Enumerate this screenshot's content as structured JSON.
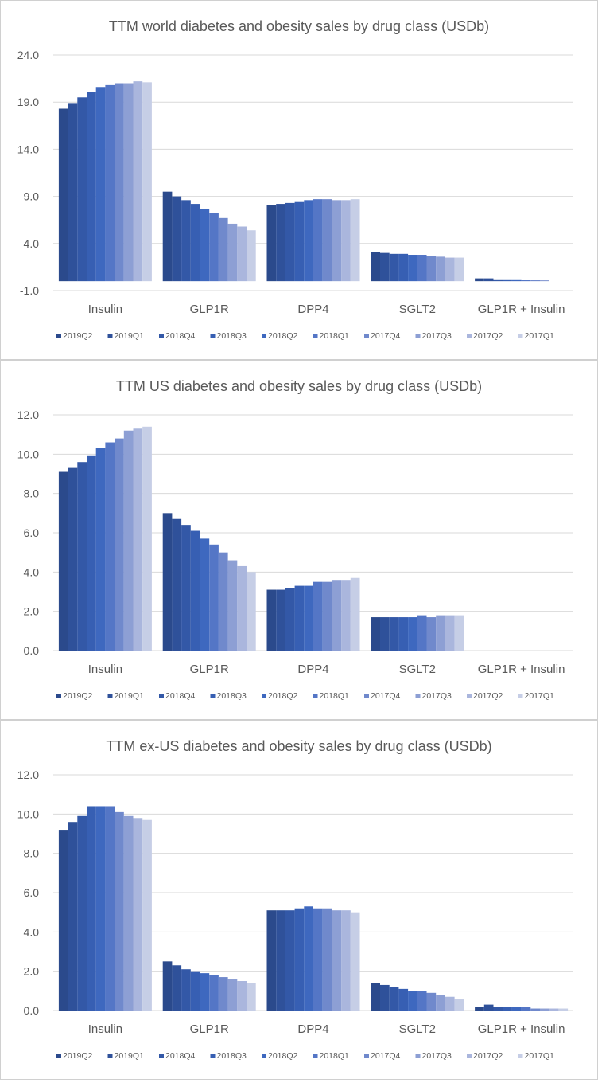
{
  "charts_meta": {
    "legend_colors": [
      "#2b4a8c",
      "#2f519a",
      "#3358a7",
      "#375fb3",
      "#3e68bf",
      "#5476c6",
      "#7089cc",
      "#8d9fd4",
      "#aab6dd",
      "#c6cee6"
    ]
  },
  "chart_data": [
    {
      "type": "bar",
      "title": "TTM world diabetes and obesity sales by drug class (USDb)",
      "xlabel": "",
      "ylabel": "",
      "ylim": [
        -1.0,
        24.0
      ],
      "yticks": [
        "24.0",
        "19.0",
        "14.0",
        "9.0",
        "4.0",
        "-1.0"
      ],
      "yticks_values": [
        24,
        19,
        14,
        9,
        4,
        -1
      ],
      "grid": true,
      "legend_position": "bottom",
      "categories": [
        "Insulin",
        "GLP1R",
        "DPP4",
        "SGLT2",
        "GLP1R + Insulin"
      ],
      "series": [
        {
          "name": "2019Q2",
          "values": [
            18.3,
            9.5,
            8.1,
            3.1,
            0.3
          ]
        },
        {
          "name": "2019Q1",
          "values": [
            18.9,
            9.0,
            8.2,
            3.0,
            0.3
          ]
        },
        {
          "name": "2018Q4",
          "values": [
            19.5,
            8.6,
            8.3,
            2.9,
            0.2
          ]
        },
        {
          "name": "2018Q3",
          "values": [
            20.1,
            8.2,
            8.4,
            2.9,
            0.2
          ]
        },
        {
          "name": "2018Q2",
          "values": [
            20.6,
            7.7,
            8.6,
            2.8,
            0.2
          ]
        },
        {
          "name": "2018Q1",
          "values": [
            20.8,
            7.2,
            8.7,
            2.8,
            0.1
          ]
        },
        {
          "name": "2017Q4",
          "values": [
            21.0,
            6.7,
            8.7,
            2.7,
            0.1
          ]
        },
        {
          "name": "2017Q3",
          "values": [
            21.0,
            6.1,
            8.6,
            2.6,
            0.1
          ]
        },
        {
          "name": "2017Q2",
          "values": [
            21.2,
            5.8,
            8.6,
            2.5,
            0.0
          ]
        },
        {
          "name": "2017Q1",
          "values": [
            21.1,
            5.4,
            8.7,
            2.5,
            0.0
          ]
        }
      ]
    },
    {
      "type": "bar",
      "title": "TTM US diabetes and obesity sales by drug class (USDb)",
      "xlabel": "",
      "ylabel": "",
      "ylim": [
        0.0,
        12.0
      ],
      "yticks": [
        "12.0",
        "10.0",
        "8.0",
        "6.0",
        "4.0",
        "2.0",
        "0.0"
      ],
      "yticks_values": [
        12,
        10,
        8,
        6,
        4,
        2,
        0
      ],
      "grid": true,
      "legend_position": "bottom",
      "categories": [
        "Insulin",
        "GLP1R",
        "DPP4",
        "SGLT2",
        "GLP1R + Insulin"
      ],
      "series": [
        {
          "name": "2019Q2",
          "values": [
            9.1,
            7.0,
            3.1,
            1.7,
            0.0
          ]
        },
        {
          "name": "2019Q1",
          "values": [
            9.3,
            6.7,
            3.1,
            1.7,
            0.0
          ]
        },
        {
          "name": "2018Q4",
          "values": [
            9.6,
            6.4,
            3.2,
            1.7,
            0.0
          ]
        },
        {
          "name": "2018Q3",
          "values": [
            9.9,
            6.1,
            3.3,
            1.7,
            0.0
          ]
        },
        {
          "name": "2018Q2",
          "values": [
            10.3,
            5.7,
            3.3,
            1.7,
            0.0
          ]
        },
        {
          "name": "2018Q1",
          "values": [
            10.6,
            5.4,
            3.5,
            1.8,
            0.0
          ]
        },
        {
          "name": "2017Q4",
          "values": [
            10.8,
            5.0,
            3.5,
            1.7,
            0.0
          ]
        },
        {
          "name": "2017Q3",
          "values": [
            11.2,
            4.6,
            3.6,
            1.8,
            0.0
          ]
        },
        {
          "name": "2017Q2",
          "values": [
            11.3,
            4.3,
            3.6,
            1.8,
            0.0
          ]
        },
        {
          "name": "2017Q1",
          "values": [
            11.4,
            4.0,
            3.7,
            1.8,
            0.0
          ]
        }
      ]
    },
    {
      "type": "bar",
      "title": "TTM ex-US diabetes and obesity sales by drug class (USDb)",
      "xlabel": "",
      "ylabel": "",
      "ylim": [
        0.0,
        12.0
      ],
      "yticks": [
        "12.0",
        "10.0",
        "8.0",
        "6.0",
        "4.0",
        "2.0",
        "0.0"
      ],
      "yticks_values": [
        12,
        10,
        8,
        6,
        4,
        2,
        0
      ],
      "grid": true,
      "legend_position": "bottom",
      "categories": [
        "Insulin",
        "GLP1R",
        "DPP4",
        "SGLT2",
        "GLP1R + Insulin"
      ],
      "series": [
        {
          "name": "2019Q2",
          "values": [
            9.2,
            2.5,
            5.1,
            1.4,
            0.2
          ]
        },
        {
          "name": "2019Q1",
          "values": [
            9.6,
            2.3,
            5.1,
            1.3,
            0.3
          ]
        },
        {
          "name": "2018Q4",
          "values": [
            9.9,
            2.1,
            5.1,
            1.2,
            0.2
          ]
        },
        {
          "name": "2018Q3",
          "values": [
            10.4,
            2.0,
            5.2,
            1.1,
            0.2
          ]
        },
        {
          "name": "2018Q2",
          "values": [
            10.4,
            1.9,
            5.3,
            1.0,
            0.2
          ]
        },
        {
          "name": "2018Q1",
          "values": [
            10.4,
            1.8,
            5.2,
            1.0,
            0.2
          ]
        },
        {
          "name": "2017Q4",
          "values": [
            10.1,
            1.7,
            5.2,
            0.9,
            0.1
          ]
        },
        {
          "name": "2017Q3",
          "values": [
            9.9,
            1.6,
            5.1,
            0.8,
            0.1
          ]
        },
        {
          "name": "2017Q2",
          "values": [
            9.8,
            1.5,
            5.1,
            0.7,
            0.1
          ]
        },
        {
          "name": "2017Q1",
          "values": [
            9.7,
            1.4,
            5.0,
            0.6,
            0.1
          ]
        }
      ]
    }
  ]
}
